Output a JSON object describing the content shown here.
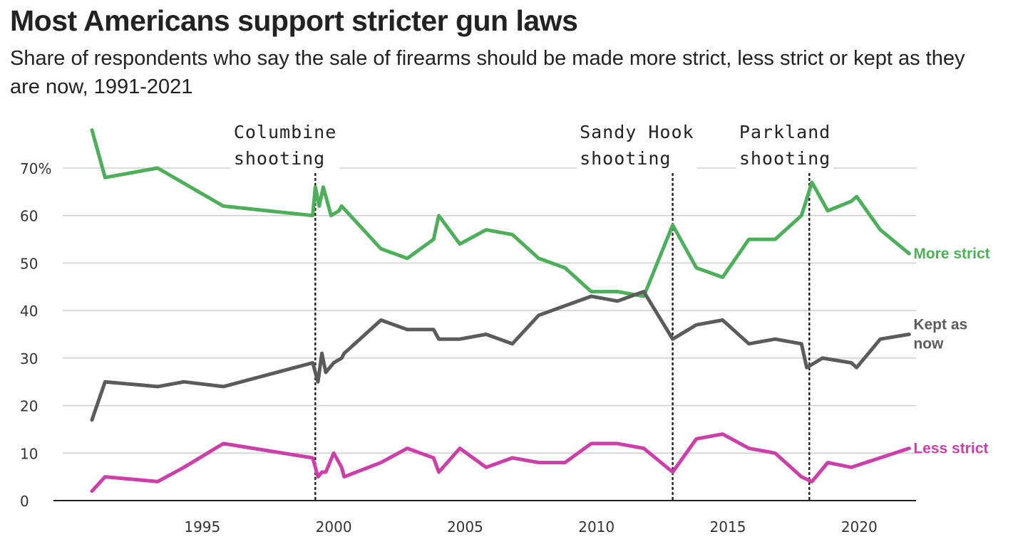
{
  "header": {
    "title": "Most Americans support stricter gun laws",
    "subtitle": "Share of respondents who say the sale of firearms should be made more strict, less strict or kept as they are now, 1991-2021"
  },
  "chart_data": {
    "type": "line",
    "title": "Most Americans support stricter gun laws",
    "subtitle": "Share of respondents who say the sale of firearms should be made more strict, less strict or kept as they are now, 1991-2021",
    "xlabel": "",
    "ylabel": "",
    "xlim": [
      1990.8,
      2022.0
    ],
    "ylim": [
      0,
      75
    ],
    "x_ticks": [
      1995,
      2000,
      2005,
      2010,
      2015,
      2020
    ],
    "x_tick_labels": [
      "1995",
      "2000",
      "2005",
      "2010",
      "2015",
      "2020"
    ],
    "y_ticks": [
      0,
      10,
      20,
      30,
      40,
      50,
      60,
      70
    ],
    "y_tick_labels": [
      "0",
      "10",
      "20",
      "30",
      "40",
      "50",
      "60",
      "70%"
    ],
    "grid": "horizontal",
    "legend": "direct labels at right",
    "annotations": [
      {
        "x": 1999.3,
        "lines": [
          "Columbine",
          "shooting"
        ]
      },
      {
        "x": 2012.9,
        "lines": [
          "Sandy Hook",
          "shooting"
        ]
      },
      {
        "x": 2018.1,
        "lines": [
          "Parkland",
          "shooting"
        ]
      }
    ],
    "series": [
      {
        "name": "More strict",
        "label_lines": [
          "More strict"
        ],
        "color": "#4daf5a",
        "points": [
          [
            1990.8,
            78
          ],
          [
            1991.3,
            68
          ],
          [
            1993.3,
            70
          ],
          [
            1995.8,
            62
          ],
          [
            1999.2,
            60
          ],
          [
            1999.3,
            66
          ],
          [
            1999.45,
            62
          ],
          [
            1999.6,
            66
          ],
          [
            1999.9,
            60
          ],
          [
            2000.2,
            61
          ],
          [
            2000.3,
            62
          ],
          [
            2001.8,
            53
          ],
          [
            2002.8,
            51
          ],
          [
            2003.8,
            55
          ],
          [
            2004.0,
            60
          ],
          [
            2004.8,
            54
          ],
          [
            2005.8,
            57
          ],
          [
            2006.8,
            56
          ],
          [
            2007.8,
            51
          ],
          [
            2008.8,
            49
          ],
          [
            2009.8,
            44
          ],
          [
            2010.8,
            44
          ],
          [
            2011.8,
            43
          ],
          [
            2012.9,
            58
          ],
          [
            2013.8,
            49
          ],
          [
            2014.8,
            47
          ],
          [
            2015.8,
            55
          ],
          [
            2016.8,
            55
          ],
          [
            2017.8,
            60
          ],
          [
            2018.2,
            67
          ],
          [
            2018.8,
            61
          ],
          [
            2019.7,
            63
          ],
          [
            2019.9,
            64
          ],
          [
            2020.8,
            57
          ],
          [
            2021.9,
            52
          ]
        ]
      },
      {
        "name": "Kept as now",
        "label_lines": [
          "Kept as",
          "now"
        ],
        "color": "#5b5b5b",
        "points": [
          [
            1990.8,
            17
          ],
          [
            1991.3,
            25
          ],
          [
            1993.3,
            24
          ],
          [
            1994.3,
            25
          ],
          [
            1995.8,
            24
          ],
          [
            1999.2,
            29
          ],
          [
            1999.4,
            25
          ],
          [
            1999.55,
            31
          ],
          [
            1999.7,
            27
          ],
          [
            2000.0,
            29
          ],
          [
            2000.3,
            30
          ],
          [
            2000.4,
            31
          ],
          [
            2001.8,
            38
          ],
          [
            2002.8,
            36
          ],
          [
            2003.8,
            36
          ],
          [
            2004.0,
            34
          ],
          [
            2004.8,
            34
          ],
          [
            2005.8,
            35
          ],
          [
            2006.8,
            33
          ],
          [
            2007.8,
            39
          ],
          [
            2009.8,
            43
          ],
          [
            2010.8,
            42
          ],
          [
            2011.8,
            44
          ],
          [
            2012.9,
            34
          ],
          [
            2013.8,
            37
          ],
          [
            2014.8,
            38
          ],
          [
            2015.8,
            33
          ],
          [
            2016.8,
            34
          ],
          [
            2017.8,
            33
          ],
          [
            2018.0,
            28
          ],
          [
            2018.6,
            30
          ],
          [
            2019.7,
            29
          ],
          [
            2019.9,
            28
          ],
          [
            2020.8,
            34
          ],
          [
            2021.9,
            35
          ]
        ]
      },
      {
        "name": "Less strict",
        "label_lines": [
          "Less strict"
        ],
        "color": "#cc3fa8",
        "points": [
          [
            1990.8,
            2
          ],
          [
            1991.3,
            5
          ],
          [
            1993.3,
            4
          ],
          [
            1994.3,
            7
          ],
          [
            1995.8,
            12
          ],
          [
            1999.2,
            9
          ],
          [
            1999.4,
            5
          ],
          [
            1999.55,
            6
          ],
          [
            1999.7,
            6
          ],
          [
            2000.0,
            10
          ],
          [
            2000.3,
            7
          ],
          [
            2000.4,
            5
          ],
          [
            2001.8,
            8
          ],
          [
            2002.8,
            11
          ],
          [
            2003.8,
            9
          ],
          [
            2004.0,
            6
          ],
          [
            2004.8,
            11
          ],
          [
            2005.8,
            7
          ],
          [
            2006.8,
            9
          ],
          [
            2007.8,
            8
          ],
          [
            2008.8,
            8
          ],
          [
            2009.8,
            12
          ],
          [
            2010.8,
            12
          ],
          [
            2011.8,
            11
          ],
          [
            2012.9,
            6
          ],
          [
            2013.8,
            13
          ],
          [
            2014.8,
            14
          ],
          [
            2015.8,
            11
          ],
          [
            2016.8,
            10
          ],
          [
            2017.8,
            5
          ],
          [
            2018.2,
            4
          ],
          [
            2018.8,
            8
          ],
          [
            2019.7,
            7
          ],
          [
            2021.9,
            11
          ]
        ]
      }
    ]
  }
}
